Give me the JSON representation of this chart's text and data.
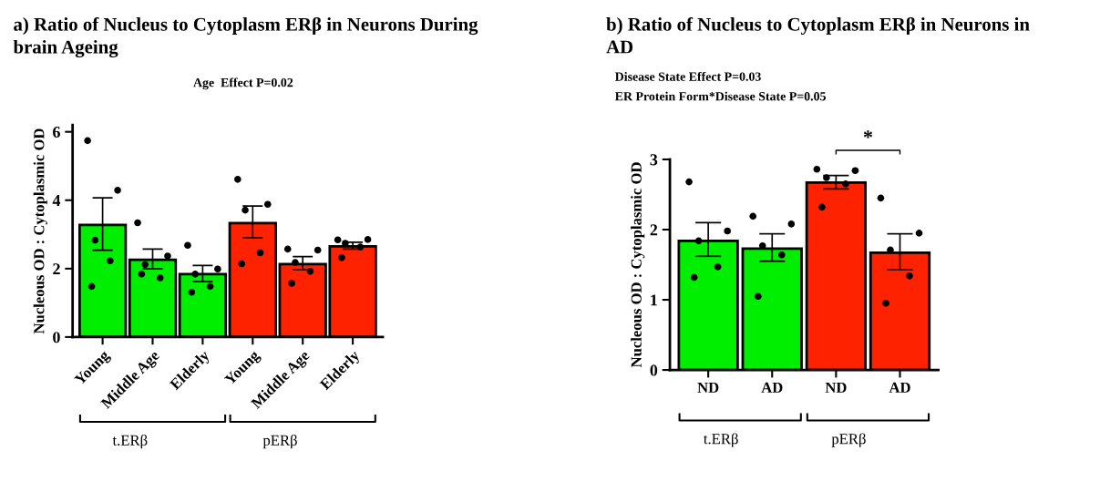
{
  "chart_data": [
    {
      "type": "bar",
      "title": "a) Ratio of Nucleus to Cytoplasm ERβ in Neurons During brain Ageing",
      "ylabel": "Nucleous OD : Cytoplasmic OD",
      "categories": [
        "Young",
        "Middle Age",
        "Elderly",
        "Young",
        "Middle Age",
        "Elderly"
      ],
      "ylim": [
        0,
        6.2
      ],
      "yticks": [
        0,
        2,
        4,
        6
      ],
      "grid": false,
      "legend": false,
      "marker": "circle",
      "annotations": [
        "Age  Effect P=0.02",
        "t.ERβ",
        "pERβ"
      ],
      "series": [
        {
          "type": "bar",
          "values": [
            3.28,
            2.26,
            1.84,
            3.33,
            2.13,
            2.65
          ],
          "colors": [
            "#00ee00",
            "#00ee00",
            "#00ee00",
            "#ff2200",
            "#ff2200",
            "#ff2200"
          ],
          "errors": [
            [
              2.54,
              4.07
            ],
            [
              1.99,
              2.57
            ],
            [
              1.62,
              2.09
            ],
            [
              2.9,
              3.83
            ],
            [
              1.97,
              2.35
            ],
            [
              2.57,
              2.77
            ]
          ]
        },
        {
          "type": "scatter",
          "color": "#000000",
          "values": [
            5.74,
            3.34,
            2.68,
            4.61,
            2.57,
            2.84
          ]
        },
        {
          "type": "scatter",
          "color": "#000000",
          "values": [
            4.29,
            2.37,
            1.99,
            3.88,
            2.54,
            2.85
          ]
        },
        {
          "type": "scatter",
          "color": "#000000",
          "values": [
            2.83,
            2.12,
            1.84,
            3.71,
            2.18,
            2.74
          ]
        },
        {
          "type": "scatter",
          "color": "#000000",
          "values": [
            2.23,
            1.73,
            1.48,
            2.46,
            1.92,
            2.63
          ]
        },
        {
          "type": "scatter",
          "color": "#000000",
          "values": [
            1.48,
            1.84,
            1.31,
            2.14,
            1.57,
            2.32
          ]
        }
      ]
    },
    {
      "type": "bar",
      "title": "b) Ratio of Nucleus to Cytoplasm ERβ in Neurons in AD",
      "ylabel": "Nucleous OD : Cytoplasmic OD",
      "categories": [
        "ND",
        "AD",
        "ND",
        "AD"
      ],
      "ylim": [
        0,
        3
      ],
      "yticks": [
        0,
        1,
        2,
        3
      ],
      "grid": false,
      "legend": false,
      "marker": "circle",
      "annotations": [
        "Disease State Effect P=0.03",
        "ER Protein Form*Disease State P=0.05",
        "*",
        "t.ERβ",
        "pERβ"
      ],
      "series": [
        {
          "type": "bar",
          "values": [
            1.84,
            1.73,
            2.67,
            1.67
          ],
          "colors": [
            "#00ee00",
            "#00ee00",
            "#ff2200",
            "#ff2200"
          ],
          "errors": [
            [
              1.62,
              2.1
            ],
            [
              1.55,
              1.94
            ],
            [
              2.58,
              2.77
            ],
            [
              1.43,
              1.94
            ]
          ]
        },
        {
          "type": "scatter",
          "color": "#000000",
          "values": [
            2.68,
            2.19,
            2.86,
            2.45
          ]
        },
        {
          "type": "scatter",
          "color": "#000000",
          "values": [
            1.98,
            2.08,
            2.84,
            1.95
          ]
        },
        {
          "type": "scatter",
          "color": "#000000",
          "values": [
            1.84,
            1.77,
            2.74,
            1.71
          ]
        },
        {
          "type": "scatter",
          "color": "#000000",
          "values": [
            1.47,
            1.64,
            2.65,
            1.34
          ]
        },
        {
          "type": "scatter",
          "color": "#000000",
          "values": [
            1.32,
            1.05,
            2.32,
            0.95
          ]
        }
      ]
    }
  ]
}
